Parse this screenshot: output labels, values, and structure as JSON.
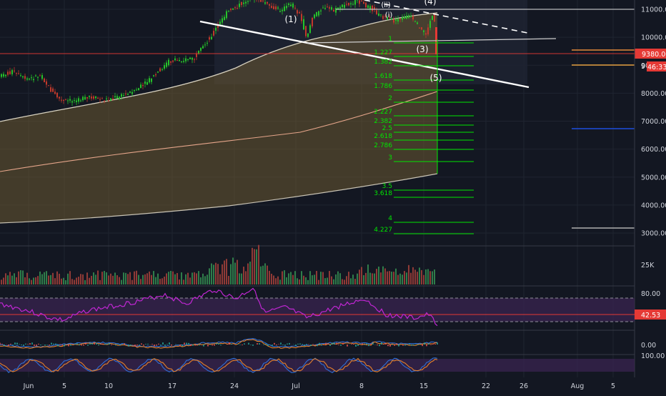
{
  "chart_data": {
    "type": "candlestick",
    "price_axis": {
      "ticks": [
        "11000.00",
        "10000.00",
        "9000.00",
        "8000.00",
        "7000.00",
        "6000.00",
        "5000.00",
        "4000.00",
        "3000.00"
      ],
      "ylim": [
        2650,
        11400
      ]
    },
    "time_axis": {
      "ticks": [
        "Jun",
        "5",
        "10",
        "17",
        "24",
        "Jul",
        "8",
        "15",
        "22",
        "26",
        "Aug",
        "5"
      ]
    },
    "current_price_label": "9380.00",
    "countdown_label_prefix": "9",
    "countdown_label": "46:33",
    "candles": [],
    "fib_extension_labels": [
      "1",
      "1.227",
      "1.382",
      "1.618",
      "1.786",
      "2",
      "2.227",
      "2.382",
      "2.5",
      "2.618",
      "2.786",
      "3",
      "3.5",
      "3.618",
      "4",
      "4.227"
    ],
    "wave_labels": [
      "(1)",
      "(3)",
      "(4)",
      "(5)",
      "(ii)",
      "(i)"
    ],
    "volume": {
      "axis_label": "25K"
    },
    "rsi": {
      "ticks": [
        "80.00"
      ],
      "value_label": "42.53",
      "levels": [
        70,
        50,
        30
      ]
    },
    "macd": {
      "ticks": [
        "0.00"
      ]
    },
    "stoch_rsi": {
      "ticks": [
        "100.00"
      ]
    },
    "colors": {
      "background": "#131722",
      "up": "#26c22a",
      "down": "#c0392b",
      "fib": "#00e600",
      "rsi": "#c026d3",
      "band_fill": "#6b5a32",
      "current_price": "#e53935"
    }
  }
}
